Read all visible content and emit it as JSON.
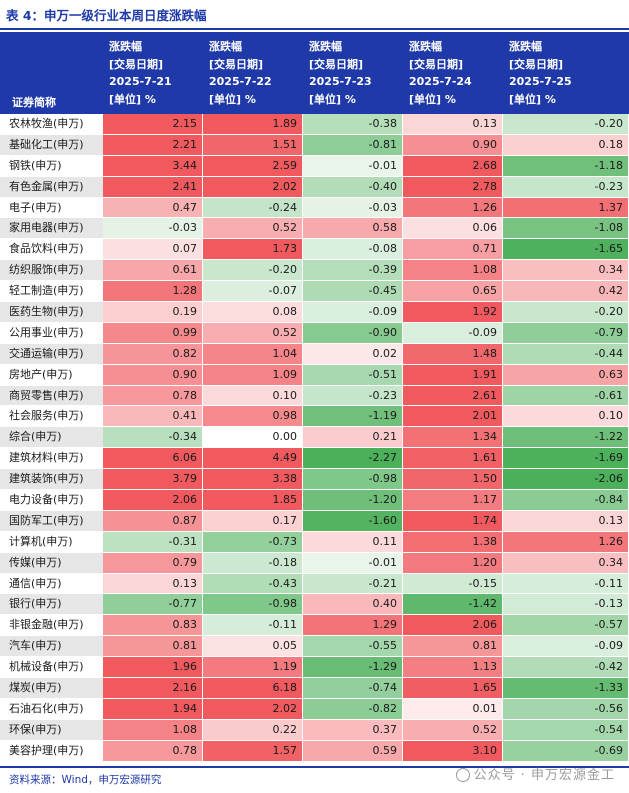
{
  "title": "表 4：申万一级行业本周日度涨跌幅",
  "name_header": "证券简称",
  "columns": [
    {
      "l1": "涨跌幅",
      "l2": "[交易日期]",
      "l3": "2025-7-21",
      "l4": "[单位] %"
    },
    {
      "l1": "涨跌幅",
      "l2": "[交易日期]",
      "l3": "2025-7-22",
      "l4": "[单位] %"
    },
    {
      "l1": "涨跌幅",
      "l2": "[交易日期]",
      "l3": "2025-7-23",
      "l4": "[单位] %"
    },
    {
      "l1": "涨跌幅",
      "l2": "[交易日期]",
      "l3": "2025-7-24",
      "l4": "[单位] %"
    },
    {
      "l1": "涨跌幅",
      "l2": "[交易日期]",
      "l3": "2025-7-25",
      "l4": "[单位] %"
    }
  ],
  "rows": [
    {
      "name": "农林牧渔(申万)",
      "v": [
        "2.15",
        "1.89",
        "-0.38",
        "0.13",
        "-0.20"
      ]
    },
    {
      "name": "基础化工(申万)",
      "v": [
        "2.21",
        "1.51",
        "-0.81",
        "0.90",
        "0.18"
      ]
    },
    {
      "name": "钢铁(申万)",
      "v": [
        "3.44",
        "2.59",
        "-0.01",
        "2.68",
        "-1.18"
      ]
    },
    {
      "name": "有色金属(申万)",
      "v": [
        "2.41",
        "2.02",
        "-0.40",
        "2.78",
        "-0.23"
      ]
    },
    {
      "name": "电子(申万)",
      "v": [
        "0.47",
        "-0.24",
        "-0.03",
        "1.26",
        "1.37"
      ]
    },
    {
      "name": "家用电器(申万)",
      "v": [
        "-0.03",
        "0.52",
        "0.58",
        "0.06",
        "-1.08"
      ]
    },
    {
      "name": "食品饮料(申万)",
      "v": [
        "0.07",
        "1.73",
        "-0.08",
        "0.71",
        "-1.65"
      ]
    },
    {
      "name": "纺织服饰(申万)",
      "v": [
        "0.61",
        "-0.20",
        "-0.39",
        "1.08",
        "0.34"
      ]
    },
    {
      "name": "轻工制造(申万)",
      "v": [
        "1.28",
        "-0.07",
        "-0.45",
        "0.65",
        "0.42"
      ]
    },
    {
      "name": "医药生物(申万)",
      "v": [
        "0.19",
        "0.08",
        "-0.09",
        "1.92",
        "-0.20"
      ]
    },
    {
      "name": "公用事业(申万)",
      "v": [
        "0.99",
        "0.52",
        "-0.90",
        "-0.09",
        "-0.79"
      ]
    },
    {
      "name": "交通运输(申万)",
      "v": [
        "0.82",
        "1.04",
        "0.02",
        "1.48",
        "-0.44"
      ]
    },
    {
      "name": "房地产(申万)",
      "v": [
        "0.90",
        "1.09",
        "-0.51",
        "1.91",
        "0.63"
      ]
    },
    {
      "name": "商贸零售(申万)",
      "v": [
        "0.78",
        "0.10",
        "-0.23",
        "2.61",
        "-0.61"
      ]
    },
    {
      "name": "社会服务(申万)",
      "v": [
        "0.41",
        "0.98",
        "-1.19",
        "2.01",
        "0.10"
      ]
    },
    {
      "name": "综合(申万)",
      "v": [
        "-0.34",
        "0.00",
        "0.21",
        "1.34",
        "-1.22"
      ]
    },
    {
      "name": "建筑材料(申万)",
      "v": [
        "6.06",
        "4.49",
        "-2.27",
        "1.61",
        "-1.69"
      ]
    },
    {
      "name": "建筑装饰(申万)",
      "v": [
        "3.79",
        "3.38",
        "-0.98",
        "1.50",
        "-2.06"
      ]
    },
    {
      "name": "电力设备(申万)",
      "v": [
        "2.06",
        "1.85",
        "-1.20",
        "1.17",
        "-0.84"
      ]
    },
    {
      "name": "国防军工(申万)",
      "v": [
        "0.87",
        "0.17",
        "-1.60",
        "1.74",
        "0.13"
      ]
    },
    {
      "name": "计算机(申万)",
      "v": [
        "-0.31",
        "-0.73",
        "0.11",
        "1.38",
        "1.26"
      ]
    },
    {
      "name": "传媒(申万)",
      "v": [
        "0.79",
        "-0.18",
        "-0.01",
        "1.20",
        "0.34"
      ]
    },
    {
      "name": "通信(申万)",
      "v": [
        "0.13",
        "-0.43",
        "-0.21",
        "-0.15",
        "-0.11"
      ]
    },
    {
      "name": "银行(申万)",
      "v": [
        "-0.77",
        "-0.98",
        "0.40",
        "-1.42",
        "-0.13"
      ]
    },
    {
      "name": "非银金融(申万)",
      "v": [
        "0.83",
        "-0.11",
        "1.29",
        "2.06",
        "-0.57"
      ]
    },
    {
      "name": "汽车(申万)",
      "v": [
        "0.81",
        "0.05",
        "-0.55",
        "0.81",
        "-0.09"
      ]
    },
    {
      "name": "机械设备(申万)",
      "v": [
        "1.96",
        "1.19",
        "-1.29",
        "1.13",
        "-0.42"
      ]
    },
    {
      "name": "煤炭(申万)",
      "v": [
        "2.16",
        "6.18",
        "-0.74",
        "1.65",
        "-1.33"
      ]
    },
    {
      "name": "石油石化(申万)",
      "v": [
        "1.94",
        "2.02",
        "-0.82",
        "0.01",
        "-0.56"
      ]
    },
    {
      "name": "环保(申万)",
      "v": [
        "1.08",
        "0.22",
        "0.37",
        "0.52",
        "-0.54"
      ]
    },
    {
      "name": "美容护理(申万)",
      "v": [
        "0.78",
        "1.57",
        "0.59",
        "3.10",
        "-0.69"
      ]
    }
  ],
  "source": "资料来源：Wind，申万宏源研究",
  "watermark": "公众号 · 申万宏源金工",
  "colors": {
    "accent": "#1f3aa8",
    "up": "#f05a5f",
    "down": "#4cb05a"
  }
}
